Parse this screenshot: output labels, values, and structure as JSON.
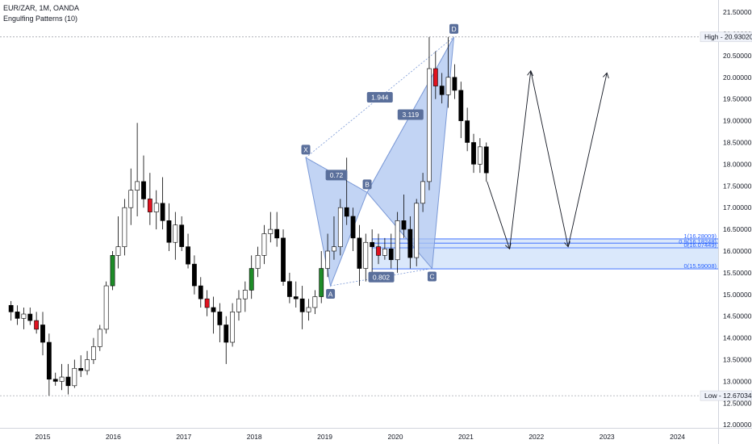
{
  "header": {
    "symbol_line": "EUR/ZAR, 1M, OANDA",
    "indicator_line": "Engulfing Patterns (10)"
  },
  "chart_data": {
    "type": "candlestick",
    "symbol": "EUR/ZAR",
    "interval": "1M",
    "source": "OANDA",
    "x_ticks": [
      "2015",
      "2016",
      "2017",
      "2018",
      "2019",
      "2020",
      "2021",
      "2022",
      "2023",
      "2024"
    ],
    "y_ticks": [
      "12.00000",
      "12.50000",
      "13.00000",
      "13.50000",
      "14.00000",
      "14.50000",
      "15.00000",
      "15.50000",
      "16.00000",
      "16.50000",
      "17.00000",
      "17.50000",
      "18.00000",
      "18.50000",
      "19.00000",
      "19.50000",
      "20.00000",
      "20.50000",
      "21.00000",
      "21.50000"
    ],
    "ylim": [
      11.93,
      21.78
    ],
    "high_label": "High",
    "high_value": 20.9302,
    "high_value_text": "20.93020",
    "low_label": "Low",
    "low_value": 12.67034,
    "low_value_text": "12.67034",
    "candles": [
      {
        "t": 2014.55,
        "o": 14.75,
        "h": 14.85,
        "l": 14.4,
        "c": 14.6
      },
      {
        "t": 2014.64,
        "o": 14.6,
        "h": 14.75,
        "l": 14.3,
        "c": 14.45
      },
      {
        "t": 2014.73,
        "o": 14.45,
        "h": 14.7,
        "l": 14.2,
        "c": 14.55
      },
      {
        "t": 2014.82,
        "o": 14.55,
        "h": 14.7,
        "l": 14.3,
        "c": 14.4
      },
      {
        "t": 2014.91,
        "o": 14.4,
        "h": 14.6,
        "l": 14.1,
        "c": 14.2
      },
      {
        "t": 2015.0,
        "o": 14.3,
        "h": 14.6,
        "l": 13.6,
        "c": 13.9
      },
      {
        "t": 2015.09,
        "o": 13.9,
        "h": 14.1,
        "l": 12.67,
        "c": 13.05
      },
      {
        "t": 2015.18,
        "o": 13.05,
        "h": 13.2,
        "l": 12.9,
        "c": 13.0
      },
      {
        "t": 2015.27,
        "o": 13.0,
        "h": 13.4,
        "l": 12.8,
        "c": 13.1
      },
      {
        "t": 2015.36,
        "o": 13.1,
        "h": 13.4,
        "l": 12.7,
        "c": 12.9
      },
      {
        "t": 2015.45,
        "o": 12.9,
        "h": 13.5,
        "l": 12.85,
        "c": 13.3
      },
      {
        "t": 2015.54,
        "o": 13.3,
        "h": 13.6,
        "l": 13.1,
        "c": 13.25
      },
      {
        "t": 2015.63,
        "o": 13.25,
        "h": 13.7,
        "l": 13.15,
        "c": 13.5
      },
      {
        "t": 2015.72,
        "o": 13.5,
        "h": 14.0,
        "l": 13.4,
        "c": 13.8
      },
      {
        "t": 2015.81,
        "o": 13.8,
        "h": 14.3,
        "l": 13.7,
        "c": 14.2
      },
      {
        "t": 2015.9,
        "o": 14.2,
        "h": 15.3,
        "l": 14.1,
        "c": 15.2
      },
      {
        "t": 2015.99,
        "o": 15.2,
        "h": 16.0,
        "l": 15.1,
        "c": 15.9
      },
      {
        "t": 2016.07,
        "o": 15.9,
        "h": 16.8,
        "l": 15.6,
        "c": 16.1
      },
      {
        "t": 2016.16,
        "o": 16.1,
        "h": 17.2,
        "l": 15.9,
        "c": 17.0
      },
      {
        "t": 2016.25,
        "o": 17.0,
        "h": 17.9,
        "l": 16.6,
        "c": 17.4
      },
      {
        "t": 2016.34,
        "o": 17.4,
        "h": 18.95,
        "l": 16.8,
        "c": 17.6
      },
      {
        "t": 2016.43,
        "o": 17.6,
        "h": 18.2,
        "l": 17.0,
        "c": 17.2
      },
      {
        "t": 2016.52,
        "o": 17.2,
        "h": 17.8,
        "l": 16.6,
        "c": 16.9
      },
      {
        "t": 2016.61,
        "o": 16.9,
        "h": 17.4,
        "l": 16.5,
        "c": 17.1
      },
      {
        "t": 2016.7,
        "o": 17.1,
        "h": 17.7,
        "l": 16.5,
        "c": 16.7
      },
      {
        "t": 2016.79,
        "o": 16.7,
        "h": 17.1,
        "l": 16.0,
        "c": 16.2
      },
      {
        "t": 2016.88,
        "o": 16.2,
        "h": 16.9,
        "l": 15.8,
        "c": 16.6
      },
      {
        "t": 2016.97,
        "o": 16.6,
        "h": 16.8,
        "l": 16.0,
        "c": 16.1
      },
      {
        "t": 2017.06,
        "o": 16.1,
        "h": 16.4,
        "l": 15.6,
        "c": 15.7
      },
      {
        "t": 2017.15,
        "o": 15.7,
        "h": 15.9,
        "l": 15.0,
        "c": 15.2
      },
      {
        "t": 2017.24,
        "o": 15.2,
        "h": 15.4,
        "l": 14.7,
        "c": 14.9
      },
      {
        "t": 2017.33,
        "o": 14.9,
        "h": 15.1,
        "l": 14.5,
        "c": 14.7
      },
      {
        "t": 2017.42,
        "o": 14.7,
        "h": 14.95,
        "l": 14.1,
        "c": 14.6
      },
      {
        "t": 2017.51,
        "o": 14.6,
        "h": 14.8,
        "l": 13.9,
        "c": 14.3
      },
      {
        "t": 2017.6,
        "o": 14.3,
        "h": 14.5,
        "l": 13.4,
        "c": 13.9
      },
      {
        "t": 2017.69,
        "o": 13.9,
        "h": 14.8,
        "l": 13.8,
        "c": 14.6
      },
      {
        "t": 2017.78,
        "o": 14.6,
        "h": 15.1,
        "l": 14.4,
        "c": 14.9
      },
      {
        "t": 2017.87,
        "o": 14.9,
        "h": 15.3,
        "l": 14.6,
        "c": 15.1
      },
      {
        "t": 2017.96,
        "o": 15.1,
        "h": 15.9,
        "l": 14.9,
        "c": 15.6
      },
      {
        "t": 2018.05,
        "o": 15.6,
        "h": 16.1,
        "l": 15.4,
        "c": 15.9
      },
      {
        "t": 2018.14,
        "o": 15.9,
        "h": 16.6,
        "l": 15.7,
        "c": 16.4
      },
      {
        "t": 2018.23,
        "o": 16.4,
        "h": 16.9,
        "l": 16.2,
        "c": 16.5
      },
      {
        "t": 2018.32,
        "o": 16.5,
        "h": 16.9,
        "l": 16.1,
        "c": 16.3
      },
      {
        "t": 2018.41,
        "o": 16.3,
        "h": 16.5,
        "l": 15.2,
        "c": 15.3
      },
      {
        "t": 2018.5,
        "o": 15.3,
        "h": 15.5,
        "l": 14.8,
        "c": 14.95
      },
      {
        "t": 2018.59,
        "o": 14.95,
        "h": 15.3,
        "l": 14.7,
        "c": 14.9
      },
      {
        "t": 2018.68,
        "o": 14.9,
        "h": 15.2,
        "l": 14.2,
        "c": 14.6
      },
      {
        "t": 2018.77,
        "o": 14.6,
        "h": 14.9,
        "l": 14.4,
        "c": 14.7
      },
      {
        "t": 2018.86,
        "o": 14.7,
        "h": 15.1,
        "l": 14.55,
        "c": 14.95
      },
      {
        "t": 2018.95,
        "o": 14.95,
        "h": 16.0,
        "l": 14.8,
        "c": 15.6
      },
      {
        "t": 2019.04,
        "o": 15.6,
        "h": 16.4,
        "l": 15.4,
        "c": 16.0
      },
      {
        "t": 2019.13,
        "o": 16.0,
        "h": 16.8,
        "l": 15.8,
        "c": 16.1
      },
      {
        "t": 2019.22,
        "o": 16.1,
        "h": 17.2,
        "l": 15.9,
        "c": 17.0
      },
      {
        "t": 2019.31,
        "o": 17.0,
        "h": 18.15,
        "l": 16.6,
        "c": 16.8
      },
      {
        "t": 2019.4,
        "o": 16.8,
        "h": 17.0,
        "l": 16.0,
        "c": 16.3
      },
      {
        "t": 2019.49,
        "o": 16.3,
        "h": 16.6,
        "l": 15.2,
        "c": 15.6
      },
      {
        "t": 2019.58,
        "o": 15.6,
        "h": 16.4,
        "l": 15.3,
        "c": 16.2
      },
      {
        "t": 2019.67,
        "o": 16.2,
        "h": 16.5,
        "l": 15.4,
        "c": 16.1
      },
      {
        "t": 2019.76,
        "o": 16.1,
        "h": 16.4,
        "l": 15.7,
        "c": 15.9
      },
      {
        "t": 2019.85,
        "o": 15.9,
        "h": 16.3,
        "l": 15.8,
        "c": 16.05
      },
      {
        "t": 2019.94,
        "o": 16.05,
        "h": 16.4,
        "l": 15.6,
        "c": 15.8
      },
      {
        "t": 2020.03,
        "o": 15.8,
        "h": 16.9,
        "l": 15.5,
        "c": 16.7
      },
      {
        "t": 2020.12,
        "o": 16.7,
        "h": 17.3,
        "l": 16.3,
        "c": 16.5
      },
      {
        "t": 2020.21,
        "o": 16.5,
        "h": 16.8,
        "l": 15.6,
        "c": 15.85
      },
      {
        "t": 2020.3,
        "o": 15.85,
        "h": 17.2,
        "l": 15.65,
        "c": 17.1
      },
      {
        "t": 2020.39,
        "o": 17.1,
        "h": 17.8,
        "l": 16.9,
        "c": 17.6
      },
      {
        "t": 2020.48,
        "o": 17.6,
        "h": 20.93,
        "l": 17.4,
        "c": 20.2
      },
      {
        "t": 2020.57,
        "o": 20.2,
        "h": 20.6,
        "l": 19.5,
        "c": 19.8
      },
      {
        "t": 2020.66,
        "o": 19.8,
        "h": 20.1,
        "l": 19.4,
        "c": 19.6
      },
      {
        "t": 2020.75,
        "o": 19.6,
        "h": 20.93,
        "l": 19.3,
        "c": 20.0
      },
      {
        "t": 2020.84,
        "o": 20.0,
        "h": 20.3,
        "l": 19.5,
        "c": 19.7
      },
      {
        "t": 2020.93,
        "o": 19.7,
        "h": 19.9,
        "l": 18.6,
        "c": 19.0
      },
      {
        "t": 2021.02,
        "o": 19.0,
        "h": 19.3,
        "l": 18.3,
        "c": 18.5
      },
      {
        "t": 2021.11,
        "o": 18.5,
        "h": 18.7,
        "l": 17.8,
        "c": 18.0
      },
      {
        "t": 2021.2,
        "o": 18.0,
        "h": 18.6,
        "l": 17.8,
        "c": 18.4
      },
      {
        "t": 2021.29,
        "o": 18.4,
        "h": 18.5,
        "l": 17.6,
        "c": 17.8
      }
    ],
    "harmonic_pattern": {
      "points": [
        {
          "label": "X",
          "t": 2018.73,
          "price": 18.15
        },
        {
          "label": "A",
          "t": 2019.08,
          "price": 15.2
        },
        {
          "label": "B",
          "t": 2019.6,
          "price": 17.35
        },
        {
          "label": "C",
          "t": 2020.52,
          "price": 15.6
        },
        {
          "label": "D",
          "t": 2020.83,
          "price": 20.93
        }
      ],
      "ratios": [
        {
          "text": "0.72"
        },
        {
          "text": "1.944"
        },
        {
          "text": "0.802"
        },
        {
          "text": "3.119"
        }
      ]
    },
    "fib_levels": [
      {
        "text": "1(16.28009)",
        "price": 16.28009
      },
      {
        "text": "0.9(16.18248)",
        "price": 16.18248
      },
      {
        "text": "0(16.07449)",
        "price": 16.07449
      },
      {
        "text": "0(15.59008)",
        "price": 15.59008
      }
    ],
    "projection_zigzag": [
      {
        "t": 2021.3,
        "price": 17.6
      },
      {
        "t": 2021.62,
        "price": 16.05
      },
      {
        "t": 2021.92,
        "price": 20.15
      },
      {
        "t": 2022.45,
        "price": 16.1
      },
      {
        "t": 2023.0,
        "price": 20.1
      }
    ],
    "colors": {
      "up_fill": "#ffffff",
      "up_green": "#1e8c28",
      "down_fill": "#000000",
      "down_red": "#e0121f",
      "pattern_fill": "#aec5f0",
      "pattern_line": "#7b99d6",
      "label_bg": "#5a6f9b",
      "fib_zone": "#d6e6fb",
      "fib_line": "#2962ff"
    }
  }
}
